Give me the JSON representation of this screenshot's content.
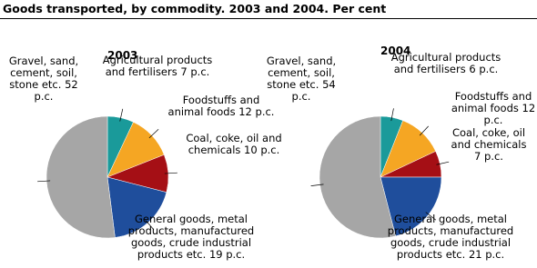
{
  "title": "Goods transported, by commodity. 2003 and 2004. Per cent",
  "chart_data": [
    {
      "type": "pie",
      "title": "2003",
      "categories": [
        "Agricultural products and fertilisers",
        "Foodstuffs and animal foods",
        "Coal, coke, oil and chemicals",
        "General goods, metal products, manufactured goods, crude industrial products etc.",
        "Gravel, sand, cement, soil, stone etc."
      ],
      "values": [
        7,
        12,
        10,
        19,
        52
      ],
      "value_labels": [
        "7 p.c.",
        "12 p.c.",
        "10 p.c.",
        "19 p.c.",
        "52 p.c."
      ],
      "colors": [
        "#1a9a9a",
        "#f5a623",
        "#a50f15",
        "#1f4e9c",
        "#a6a6a6"
      ]
    },
    {
      "type": "pie",
      "title": "2004",
      "categories": [
        "Agricultural products and fertilisers",
        "Foodstuffs and animal foods",
        "Coal, coke, oil and chemicals",
        "General goods, metal products, manufactured goods, crude industrial products etc.",
        "Gravel, sand, cement, soil, stone etc."
      ],
      "values": [
        6,
        12,
        7,
        21,
        54
      ],
      "value_labels": [
        "6 p.c.",
        "12 p.c.",
        "7 p.c.",
        "21 p.c.",
        "54 p.c."
      ],
      "colors": [
        "#1a9a9a",
        "#f5a623",
        "#a50f15",
        "#1f4e9c",
        "#a6a6a6"
      ]
    }
  ]
}
